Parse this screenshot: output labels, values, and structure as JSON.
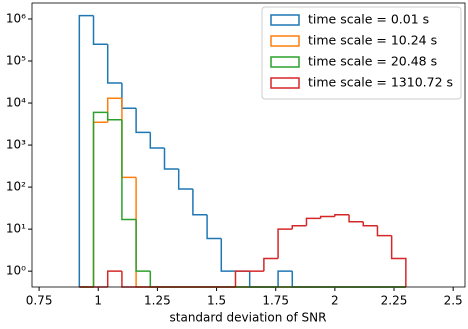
{
  "chart_data": {
    "type": "histogram",
    "xlabel": "standard deviation of SNR",
    "bins": [
      0.92,
      0.98,
      1.04,
      1.1,
      1.16,
      1.22,
      1.28,
      1.34,
      1.4,
      1.46,
      1.52,
      1.58,
      1.64,
      1.7,
      1.76,
      1.82,
      1.88,
      1.94,
      2.0,
      2.06,
      2.12,
      2.18,
      2.24,
      2.3
    ],
    "series": [
      {
        "name": "time scale = 0.01 s",
        "color": "#1f77b4",
        "values": [
          1200000,
          250000,
          30000,
          7500,
          2000,
          850,
          270,
          90,
          22,
          6,
          1,
          1,
          0,
          0,
          1,
          0,
          0,
          0,
          0,
          0,
          0,
          0,
          0
        ]
      },
      {
        "name": "time scale = 10.24 s",
        "color": "#ff7f0e",
        "values": [
          0,
          3500,
          13000,
          170,
          0,
          0,
          0,
          0,
          0,
          0,
          0,
          0,
          0,
          0,
          0,
          0,
          0,
          0,
          0,
          0,
          0,
          0,
          0
        ]
      },
      {
        "name": "time scale = 20.48 s",
        "color": "#2ca02c",
        "values": [
          0,
          6000,
          4000,
          17,
          1,
          0,
          0,
          0,
          0,
          0,
          0,
          0,
          0,
          0,
          0,
          0,
          0,
          0,
          0,
          0,
          0,
          0,
          0
        ]
      },
      {
        "name": "time scale = 1310.72 s",
        "color": "#d62728",
        "values": [
          0,
          0,
          1,
          0,
          0,
          0,
          0,
          0,
          0,
          0,
          0,
          1,
          1,
          2,
          10,
          12,
          18,
          20,
          22,
          15,
          12,
          7,
          2
        ]
      }
    ],
    "xlim": [
      0.72,
      2.55
    ],
    "xticks": [
      0.75,
      1.0,
      1.25,
      1.5,
      1.75,
      2.0,
      2.25,
      2.5
    ],
    "ylim": [
      0.42,
      2400000
    ],
    "log_y": true,
    "yticks": [
      {
        "value": 1,
        "label": "10⁰"
      },
      {
        "value": 10,
        "label": "10¹"
      },
      {
        "value": 100,
        "label": "10²"
      },
      {
        "value": 1000,
        "label": "10³"
      },
      {
        "value": 10000,
        "label": "10⁴"
      },
      {
        "value": 100000,
        "label": "10⁵"
      },
      {
        "value": 1000000,
        "label": "10⁶"
      }
    ],
    "legend": "upper right"
  }
}
